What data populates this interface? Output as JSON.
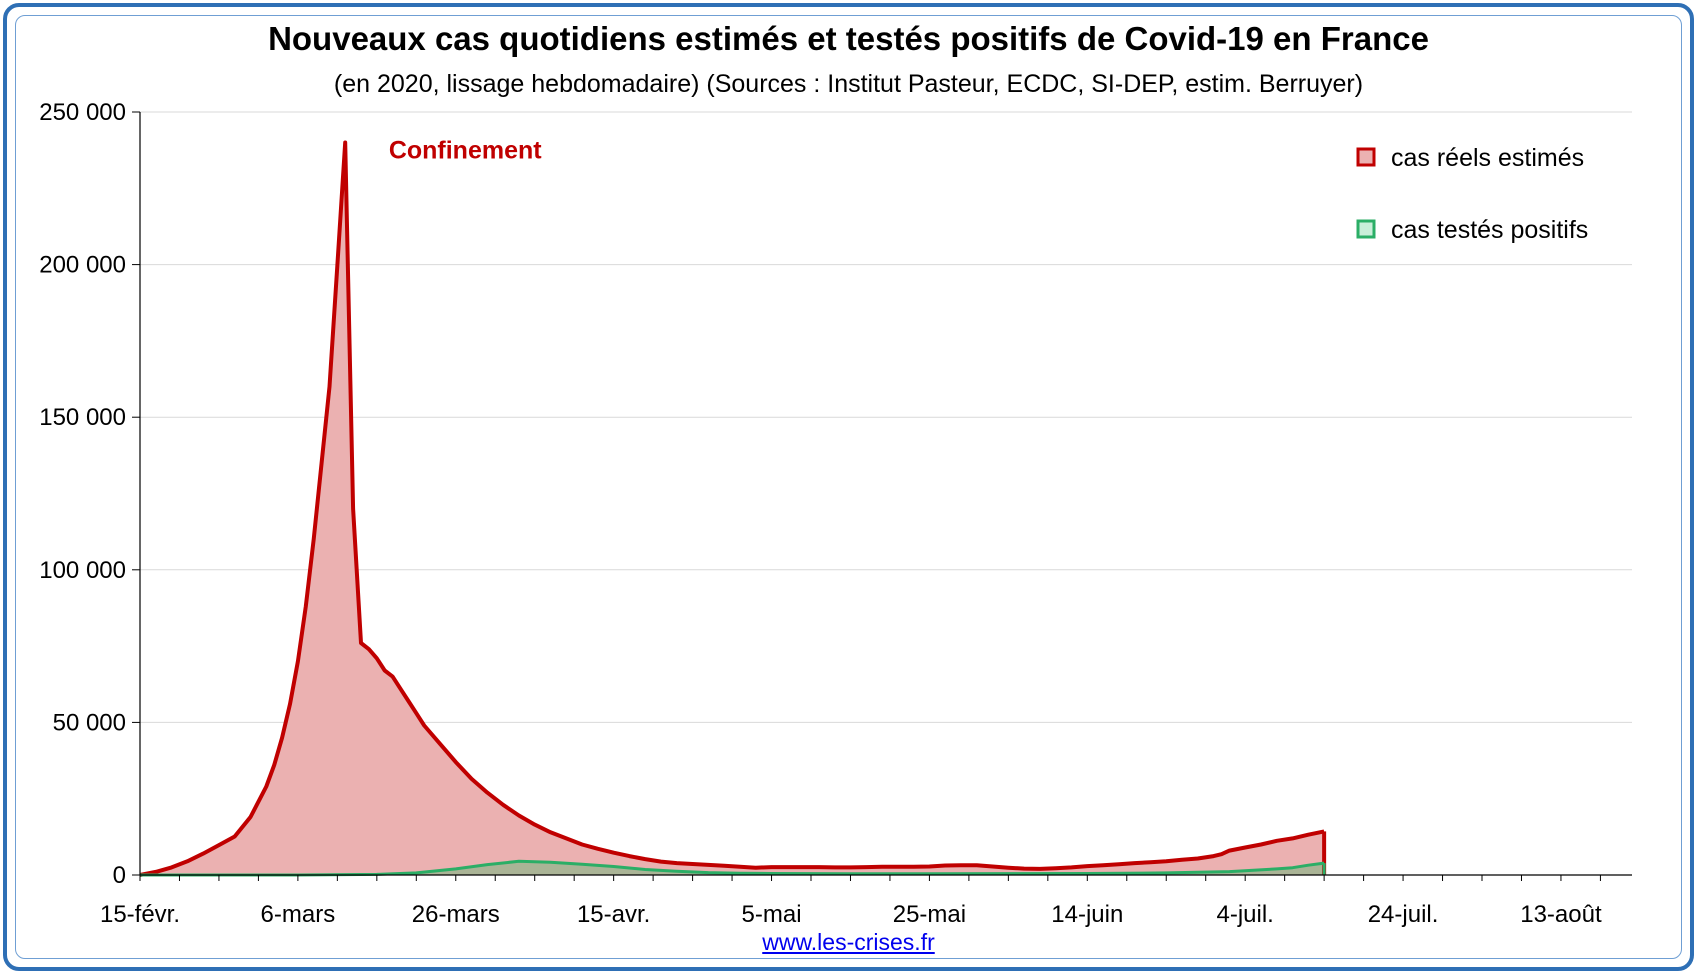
{
  "colors": {
    "frame": "#2e6fb5",
    "estimated_line": "#c00000",
    "estimated_fill": "#ebb1b1",
    "tested_line": "#2bae66",
    "tested_fill": "#9fb592",
    "grid": "#d9d9d9"
  },
  "source": "www.les-crises.fr",
  "chart_data": {
    "type": "area",
    "title": "Nouveaux cas quotidiens estimés et testés positifs de Covid-19 en France",
    "subtitle": "(en 2020, lissage hebdomadaire) (Sources : Institut Pasteur, ECDC, SI-DEP, estim. Berruyer)",
    "xlabel": "",
    "ylabel": "",
    "x_start": "15-févr.",
    "x_end_day_offset": 189,
    "ylim": [
      0,
      250000
    ],
    "y_ticks": [
      0,
      50000,
      100000,
      150000,
      200000,
      250000
    ],
    "y_tick_labels": [
      "0",
      "50 000",
      "100 000",
      "150 000",
      "200 000",
      "250 000"
    ],
    "x_ticks": [
      {
        "day": 0,
        "label": "15-févr."
      },
      {
        "day": 20,
        "label": "6-mars"
      },
      {
        "day": 40,
        "label": "26-mars"
      },
      {
        "day": 60,
        "label": "15-avr."
      },
      {
        "day": 80,
        "label": "5-mai"
      },
      {
        "day": 100,
        "label": "25-mai"
      },
      {
        "day": 120,
        "label": "14-juin"
      },
      {
        "day": 140,
        "label": "4-juil."
      },
      {
        "day": 160,
        "label": "24-juil."
      },
      {
        "day": 180,
        "label": "13-août"
      }
    ],
    "grid": true,
    "legend_position": "top-right",
    "annotation": {
      "text": "Confinement",
      "day": 30,
      "value": 240000
    },
    "series": [
      {
        "name": "cas réels estimés",
        "points": [
          [
            0,
            0
          ],
          [
            2,
            1000
          ],
          [
            4,
            2500
          ],
          [
            6,
            4500
          ],
          [
            8,
            7000
          ],
          [
            10,
            9800
          ],
          [
            12,
            12600
          ],
          [
            14,
            19000
          ],
          [
            16,
            29000
          ],
          [
            17,
            36000
          ],
          [
            18,
            45000
          ],
          [
            19,
            56000
          ],
          [
            20,
            70000
          ],
          [
            21,
            88000
          ],
          [
            22,
            110000
          ],
          [
            23,
            135000
          ],
          [
            24,
            160000
          ],
          [
            25,
            200000
          ],
          [
            26,
            240000
          ],
          [
            27,
            120000
          ],
          [
            28,
            76000
          ],
          [
            29,
            74000
          ],
          [
            30,
            71000
          ],
          [
            31,
            67000
          ],
          [
            32,
            65000
          ],
          [
            33,
            61000
          ],
          [
            34,
            57000
          ],
          [
            35,
            53000
          ],
          [
            36,
            49000
          ],
          [
            38,
            43000
          ],
          [
            40,
            37000
          ],
          [
            42,
            31500
          ],
          [
            44,
            27000
          ],
          [
            46,
            23000
          ],
          [
            48,
            19500
          ],
          [
            50,
            16500
          ],
          [
            52,
            14000
          ],
          [
            54,
            12000
          ],
          [
            56,
            10000
          ],
          [
            58,
            8600
          ],
          [
            60,
            7300
          ],
          [
            62,
            6200
          ],
          [
            64,
            5200
          ],
          [
            66,
            4400
          ],
          [
            68,
            3900
          ],
          [
            70,
            3600
          ],
          [
            72,
            3300
          ],
          [
            74,
            3000
          ],
          [
            76,
            2700
          ],
          [
            78,
            2400
          ],
          [
            80,
            2600
          ],
          [
            82,
            2600
          ],
          [
            84,
            2600
          ],
          [
            86,
            2600
          ],
          [
            88,
            2500
          ],
          [
            90,
            2500
          ],
          [
            92,
            2600
          ],
          [
            94,
            2700
          ],
          [
            96,
            2700
          ],
          [
            98,
            2700
          ],
          [
            100,
            2800
          ],
          [
            102,
            3100
          ],
          [
            104,
            3200
          ],
          [
            106,
            3200
          ],
          [
            108,
            2800
          ],
          [
            110,
            2400
          ],
          [
            112,
            2100
          ],
          [
            114,
            2000
          ],
          [
            116,
            2200
          ],
          [
            118,
            2500
          ],
          [
            120,
            2900
          ],
          [
            122,
            3200
          ],
          [
            124,
            3500
          ],
          [
            126,
            3900
          ],
          [
            128,
            4200
          ],
          [
            130,
            4500
          ],
          [
            132,
            5000
          ],
          [
            134,
            5400
          ],
          [
            136,
            6200
          ],
          [
            137,
            6800
          ],
          [
            138,
            8000
          ],
          [
            140,
            9000
          ],
          [
            142,
            10000
          ],
          [
            144,
            11200
          ],
          [
            146,
            12000
          ],
          [
            148,
            13200
          ],
          [
            150,
            14300
          ]
        ]
      },
      {
        "name": "cas testés positifs",
        "points": [
          [
            0,
            0
          ],
          [
            20,
            0
          ],
          [
            30,
            200
          ],
          [
            35,
            700
          ],
          [
            40,
            2000
          ],
          [
            44,
            3400
          ],
          [
            48,
            4500
          ],
          [
            52,
            4200
          ],
          [
            56,
            3500
          ],
          [
            60,
            2800
          ],
          [
            64,
            1800
          ],
          [
            68,
            1200
          ],
          [
            72,
            800
          ],
          [
            76,
            600
          ],
          [
            80,
            500
          ],
          [
            90,
            400
          ],
          [
            100,
            400
          ],
          [
            110,
            450
          ],
          [
            120,
            500
          ],
          [
            130,
            700
          ],
          [
            138,
            1100
          ],
          [
            144,
            2000
          ],
          [
            146,
            2400
          ],
          [
            148,
            3200
          ],
          [
            150,
            3900
          ]
        ]
      }
    ]
  }
}
